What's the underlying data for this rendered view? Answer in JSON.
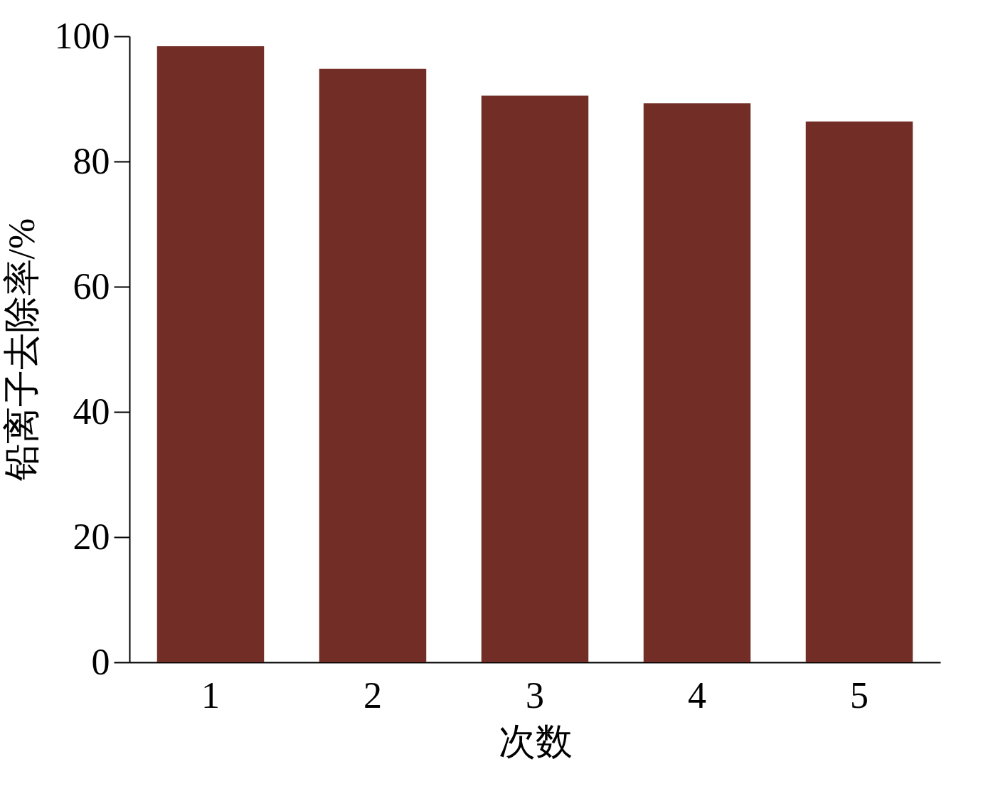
{
  "chart_data": {
    "type": "bar",
    "xlabel": "次数",
    "ylabel": "铅离子去除率/%",
    "categories": [
      "1",
      "2",
      "3",
      "4",
      "5"
    ],
    "values": [
      98.4,
      94.8,
      90.5,
      89.3,
      86.4
    ],
    "color": "#722d27",
    "ylim": [
      0,
      100
    ],
    "yticks": [
      0,
      20,
      40,
      60,
      80,
      100
    ],
    "grid": false
  }
}
